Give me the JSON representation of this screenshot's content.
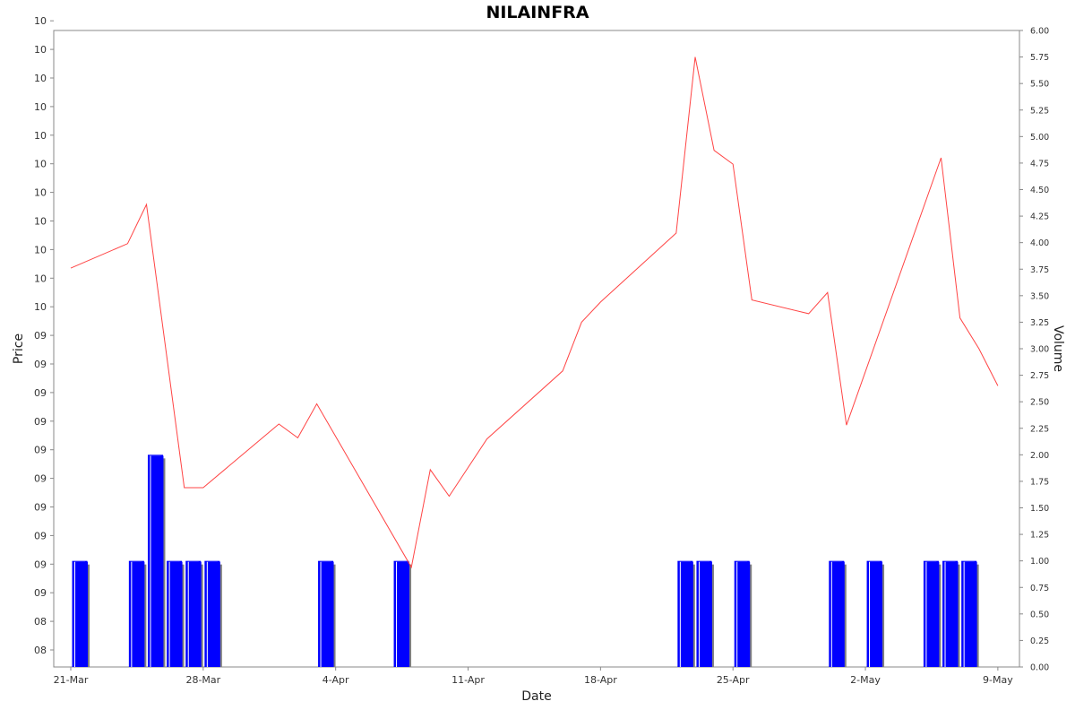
{
  "chart_data": {
    "type": "line",
    "title": "NILAINFRA",
    "xlabel": "Date",
    "ylabel_left": "Price",
    "ylabel_right": "Volume",
    "x_ticks": [
      "21-Mar",
      "28-Mar",
      "4-Apr",
      "11-Apr",
      "18-Apr",
      "25-Apr",
      "2-May",
      "9-May"
    ],
    "left_ticks": [
      "08",
      "08",
      "09",
      "09",
      "09",
      "09",
      "09",
      "09",
      "09",
      "09",
      "09",
      "09",
      "10",
      "10",
      "10",
      "10",
      "10",
      "10",
      "10",
      "10",
      "10",
      "10",
      "10",
      "10"
    ],
    "right_ticks": [
      "0.00",
      "0.25",
      "0.50",
      "0.75",
      "1.00",
      "1.25",
      "1.50",
      "1.75",
      "2.00",
      "2.25",
      "2.50",
      "2.75",
      "3.00",
      "3.25",
      "3.50",
      "3.75",
      "4.00",
      "4.25",
      "4.50",
      "4.75",
      "5.00",
      "5.25",
      "5.50",
      "5.75",
      "6.00"
    ],
    "volume_range": [
      0,
      6
    ],
    "price_series": {
      "name": "Price",
      "color": "#ff4444",
      "points": [
        {
          "date": "2024-03-21",
          "value": 3.76
        },
        {
          "date": "2024-03-24",
          "value": 3.99
        },
        {
          "date": "2024-03-25",
          "value": 4.36
        },
        {
          "date": "2024-03-27",
          "value": 1.69
        },
        {
          "date": "2024-03-28",
          "value": 1.69
        },
        {
          "date": "2024-04-01",
          "value": 2.29
        },
        {
          "date": "2024-04-02",
          "value": 2.16
        },
        {
          "date": "2024-04-03",
          "value": 2.48
        },
        {
          "date": "2024-04-08",
          "value": 0.94
        },
        {
          "date": "2024-04-09",
          "value": 1.86
        },
        {
          "date": "2024-04-10",
          "value": 1.61
        },
        {
          "date": "2024-04-12",
          "value": 2.15
        },
        {
          "date": "2024-04-16",
          "value": 2.79
        },
        {
          "date": "2024-04-17",
          "value": 3.25
        },
        {
          "date": "2024-04-18",
          "value": 3.44
        },
        {
          "date": "2024-04-22",
          "value": 4.09
        },
        {
          "date": "2024-04-23",
          "value": 5.75
        },
        {
          "date": "2024-04-24",
          "value": 4.87
        },
        {
          "date": "2024-04-25",
          "value": 4.74
        },
        {
          "date": "2024-04-26",
          "value": 3.46
        },
        {
          "date": "2024-04-29",
          "value": 3.33
        },
        {
          "date": "2024-04-30",
          "value": 3.53
        },
        {
          "date": "2024-05-01",
          "value": 2.28
        },
        {
          "date": "2024-05-06",
          "value": 4.8
        },
        {
          "date": "2024-05-07",
          "value": 3.29
        },
        {
          "date": "2024-05-08",
          "value": 3.0
        },
        {
          "date": "2024-05-09",
          "value": 2.65
        }
      ]
    },
    "volume_series": {
      "name": "Volume",
      "color": "#0000ff",
      "points": [
        {
          "date": "2024-03-21",
          "value": 1
        },
        {
          "date": "2024-03-24",
          "value": 1
        },
        {
          "date": "2024-03-25",
          "value": 2
        },
        {
          "date": "2024-03-26",
          "value": 1
        },
        {
          "date": "2024-03-27",
          "value": 1
        },
        {
          "date": "2024-03-28",
          "value": 1
        },
        {
          "date": "2024-04-03",
          "value": 1
        },
        {
          "date": "2024-04-07",
          "value": 1
        },
        {
          "date": "2024-04-22",
          "value": 1
        },
        {
          "date": "2024-04-23",
          "value": 1
        },
        {
          "date": "2024-04-25",
          "value": 1
        },
        {
          "date": "2024-04-30",
          "value": 1
        },
        {
          "date": "2024-05-02",
          "value": 1
        },
        {
          "date": "2024-05-05",
          "value": 1
        },
        {
          "date": "2024-05-06",
          "value": 1
        },
        {
          "date": "2024-05-07",
          "value": 1
        }
      ]
    },
    "grid": false,
    "legend": "none"
  }
}
